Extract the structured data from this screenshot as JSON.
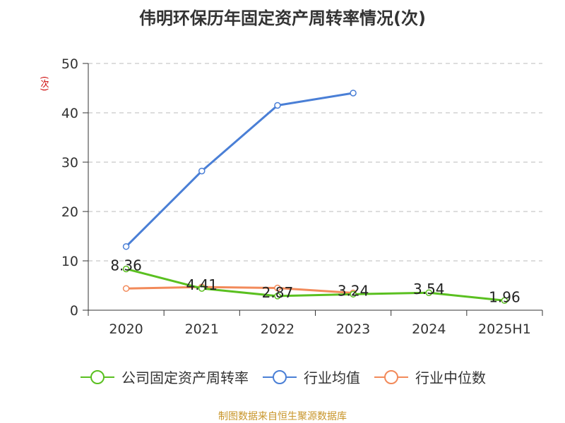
{
  "title": "伟明环保历年固定资产周转率情况(次)",
  "unit_label": "(次)",
  "source": "制图数据来自恒生聚源数据库",
  "chart_data": {
    "type": "line",
    "title": "伟明环保历年固定资产周转率情况(次)",
    "categories": [
      "2020",
      "2021",
      "2022",
      "2023",
      "2024",
      "2025H1"
    ],
    "ylim": [
      0,
      50
    ],
    "yticks": [
      0,
      10,
      20,
      30,
      40,
      50
    ],
    "grid": true,
    "legend_position": "bottom",
    "series": [
      {
        "name": "公司固定资产周转率",
        "color": "#5ac020",
        "values": [
          8.36,
          4.41,
          2.87,
          3.24,
          3.54,
          1.96
        ],
        "labels": true
      },
      {
        "name": "行业均值",
        "color": "#4a7fd6",
        "values": [
          12.9,
          28.2,
          41.5,
          44.0,
          null,
          null
        ],
        "labels": false
      },
      {
        "name": "行业中位数",
        "color": "#f28a5a",
        "values": [
          4.4,
          4.7,
          4.5,
          3.5,
          null,
          null
        ],
        "labels": false
      }
    ]
  }
}
